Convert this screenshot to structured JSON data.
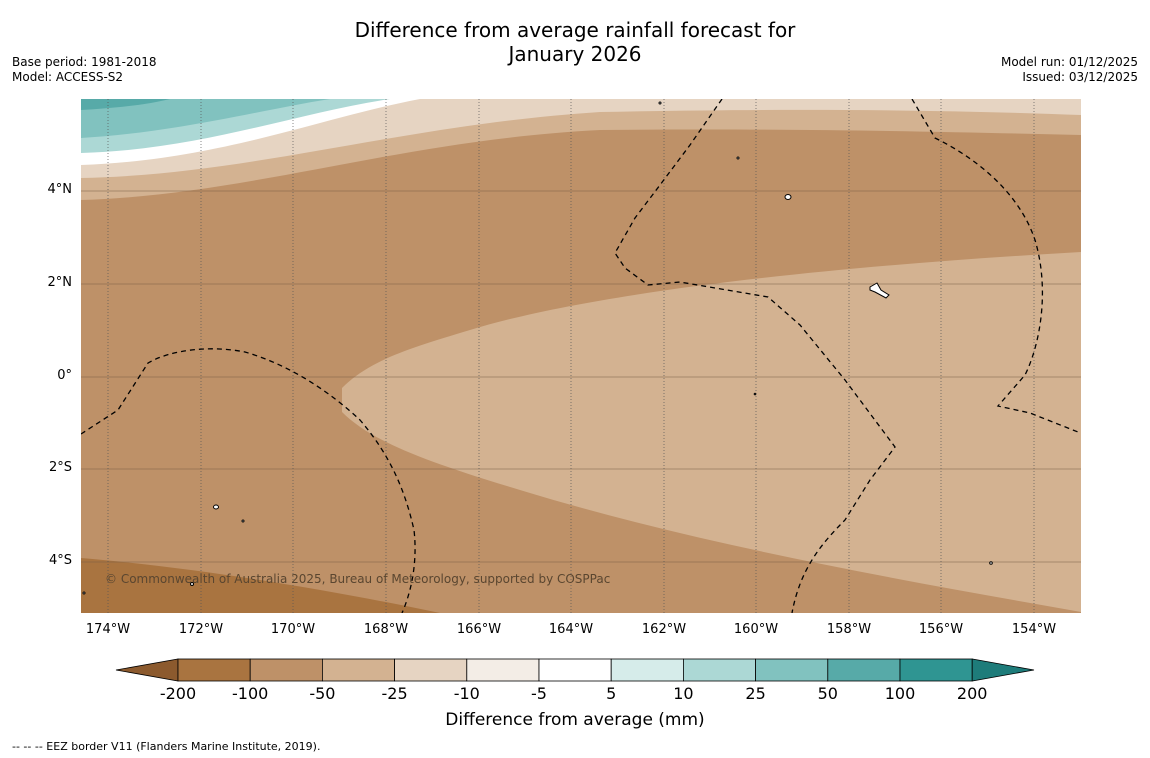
{
  "title": {
    "line1": "Difference from average rainfall forecast for",
    "line2": "January 2026"
  },
  "meta_left": {
    "base_period": "Base period: 1981-2018",
    "model": "Model: ACCESS-S2"
  },
  "meta_right": {
    "model_run": "Model run: 01/12/2025",
    "issued": "Issued: 03/12/2025"
  },
  "map": {
    "lat_labels": [
      "4°N",
      "2°N",
      "0°",
      "2°S",
      "4°S"
    ],
    "lon_labels": [
      "174°W",
      "172°W",
      "170°W",
      "168°W",
      "166°W",
      "164°W",
      "162°W",
      "160°W",
      "158°W",
      "156°W",
      "154°W"
    ],
    "copyright": "© Commonwealth of Australia 2025, Bureau of Meteorology, supported by COSPPac"
  },
  "colorbar": {
    "labels": [
      "-200",
      "-100",
      "-50",
      "-25",
      "-10",
      "-5",
      "5",
      "10",
      "25",
      "50",
      "100",
      "200"
    ],
    "colors": [
      "#8c5a2e",
      "#a97440",
      "#be9168",
      "#d3b291",
      "#e6d4c2",
      "#f3ede6",
      "#ffffff",
      "#d6ecea",
      "#acd8d5",
      "#81c2bf",
      "#57aaa8",
      "#2f9592",
      "#1e7c7a"
    ],
    "title": "Difference from average (mm)"
  },
  "footer": "--  --  -- EEZ border V11 (Flanders Marine Institute, 2019)."
}
